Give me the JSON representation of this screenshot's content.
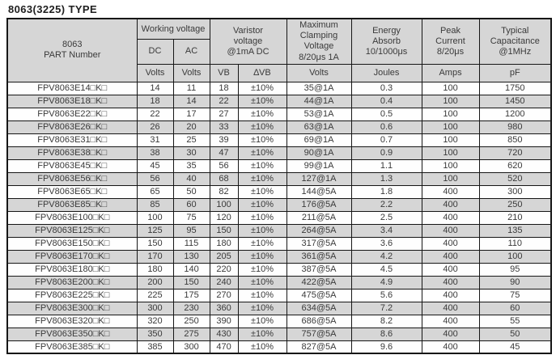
{
  "page": {
    "title": "8063(3225) TYPE"
  },
  "colors": {
    "header_bg": "#d6d6d6",
    "stripe_bg": "#d6d6d6",
    "border": "#161616",
    "text": "#3a3a3a"
  },
  "table": {
    "headers": {
      "part_number": "8063\nPART Number",
      "working_voltage": "Working voltage",
      "dc": "DC",
      "ac": "AC",
      "varistor_voltage": "Varistor\nvoltage\n@1mA DC",
      "max_clamping_voltage": "Maximum\nClamping\nVoltage\n8/20μs 1A",
      "energy_absorb": "Energy\nAbsorb\n10/1000μs",
      "peak_current": "Peak\nCurrent\n8/20μs",
      "typical_capacitance": "Typical\nCapacitance\n@1MHz"
    },
    "units": [
      "Volts",
      "Volts",
      "VB",
      "∆VB",
      "Volts",
      "Joules",
      "Amps",
      "pF"
    ],
    "columns": [
      "part-number",
      "dc-volts",
      "ac-volts",
      "vb",
      "delta-vb",
      "clamping-voltage",
      "energy-joules",
      "peak-amps",
      "capacitance-pf"
    ],
    "rows": [
      [
        "FPV8063E14□K□",
        "14",
        "11",
        "18",
        "±10%",
        "35@1A",
        "0.3",
        "100",
        "1750"
      ],
      [
        "FPV8063E18□K□",
        "18",
        "14",
        "22",
        "±10%",
        "44@1A",
        "0.4",
        "100",
        "1450"
      ],
      [
        "FPV8063E22□K□",
        "22",
        "17",
        "27",
        "±10%",
        "53@1A",
        "0.5",
        "100",
        "1200"
      ],
      [
        "FPV8063E26□K□",
        "26",
        "20",
        "33",
        "±10%",
        "63@1A",
        "0.6",
        "100",
        "980"
      ],
      [
        "FPV8063E31□K□",
        "31",
        "25",
        "39",
        "±10%",
        "69@1A",
        "0.7",
        "100",
        "850"
      ],
      [
        "FPV8063E38□K□",
        "38",
        "30",
        "47",
        "±10%",
        "90@1A",
        "0.9",
        "100",
        "720"
      ],
      [
        "FPV8063E45□K□",
        "45",
        "35",
        "56",
        "±10%",
        "99@1A",
        "1.1",
        "100",
        "620"
      ],
      [
        "FPV8063E56□K□",
        "56",
        "40",
        "68",
        "±10%",
        "127@1A",
        "1.3",
        "100",
        "520"
      ],
      [
        "FPV8063E65□K□",
        "65",
        "50",
        "82",
        "±10%",
        "144@5A",
        "1.8",
        "400",
        "300"
      ],
      [
        "FPV8063E85□K□",
        "85",
        "60",
        "100",
        "±10%",
        "176@5A",
        "2.2",
        "400",
        "250"
      ],
      [
        "FPV8063E100□K□",
        "100",
        "75",
        "120",
        "±10%",
        "211@5A",
        "2.5",
        "400",
        "210"
      ],
      [
        "FPV8063E125□K□",
        "125",
        "95",
        "150",
        "±10%",
        "264@5A",
        "3.4",
        "400",
        "135"
      ],
      [
        "FPV8063E150□K□",
        "150",
        "115",
        "180",
        "±10%",
        "317@5A",
        "3.6",
        "400",
        "110"
      ],
      [
        "FPV8063E170□K□",
        "170",
        "130",
        "205",
        "±10%",
        "361@5A",
        "4.2",
        "400",
        "100"
      ],
      [
        "FPV8063E180□K□",
        "180",
        "140",
        "220",
        "±10%",
        "387@5A",
        "4.5",
        "400",
        "95"
      ],
      [
        "FPV8063E200□K□",
        "200",
        "150",
        "240",
        "±10%",
        "422@5A",
        "4.9",
        "400",
        "90"
      ],
      [
        "FPV8063E225□K□",
        "225",
        "175",
        "270",
        "±10%",
        "475@5A",
        "5.6",
        "400",
        "75"
      ],
      [
        "FPV8063E300□K□",
        "300",
        "230",
        "360",
        "±10%",
        "634@5A",
        "7.2",
        "400",
        "60"
      ],
      [
        "FPV8063E320□K□",
        "320",
        "250",
        "390",
        "±10%",
        "686@5A",
        "8.2",
        "400",
        "55"
      ],
      [
        "FPV8063E350□K□",
        "350",
        "275",
        "430",
        "±10%",
        "757@5A",
        "8.6",
        "400",
        "50"
      ],
      [
        "FPV8063E385□K□",
        "385",
        "300",
        "470",
        "±10%",
        "827@5A",
        "9.6",
        "400",
        "45"
      ]
    ]
  }
}
